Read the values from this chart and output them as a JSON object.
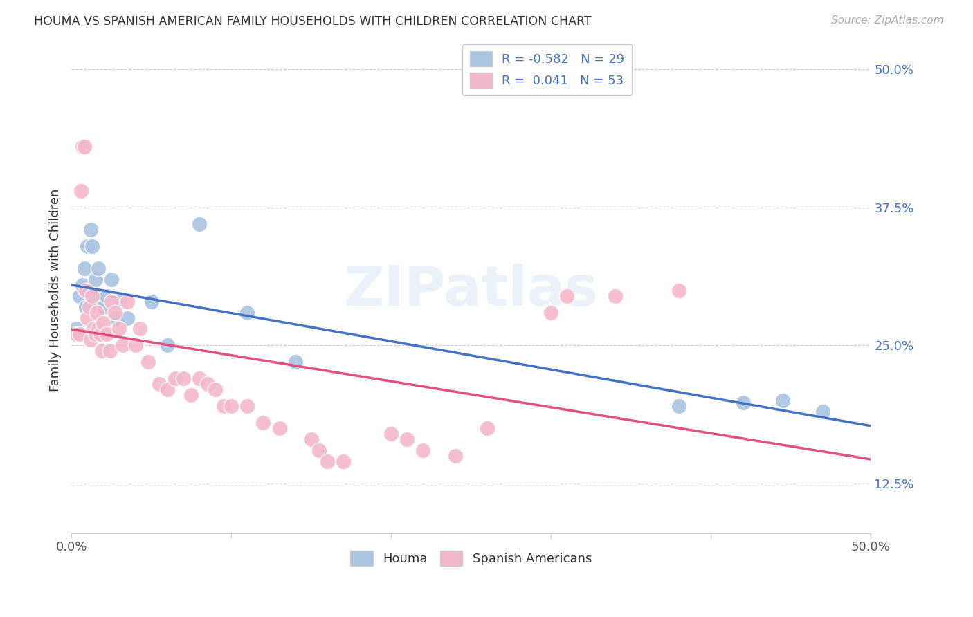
{
  "title": "HOUMA VS SPANISH AMERICAN FAMILY HOUSEHOLDS WITH CHILDREN CORRELATION CHART",
  "source": "Source: ZipAtlas.com",
  "ylabel": "Family Households with Children",
  "xlim": [
    0.0,
    0.5
  ],
  "ylim": [
    0.08,
    0.52
  ],
  "yticks": [
    0.125,
    0.25,
    0.375,
    0.5
  ],
  "ytick_labels": [
    "12.5%",
    "25.0%",
    "37.5%",
    "50.0%"
  ],
  "houma_R": "-0.582",
  "houma_N": "29",
  "spanish_R": "0.041",
  "spanish_N": "53",
  "houma_color": "#aac4e2",
  "houma_line_color": "#4472c4",
  "spanish_color": "#f4b8cb",
  "spanish_line_color": "#e05080",
  "background_color": "#ffffff",
  "grid_color": "#cccccc",
  "houma_x": [
    0.003,
    0.005,
    0.007,
    0.008,
    0.009,
    0.01,
    0.01,
    0.012,
    0.013,
    0.015,
    0.015,
    0.017,
    0.018,
    0.02,
    0.02,
    0.022,
    0.025,
    0.028,
    0.03,
    0.035,
    0.05,
    0.06,
    0.08,
    0.11,
    0.14,
    0.38,
    0.42,
    0.445,
    0.47
  ],
  "houma_y": [
    0.265,
    0.295,
    0.305,
    0.32,
    0.285,
    0.34,
    0.3,
    0.355,
    0.34,
    0.31,
    0.295,
    0.32,
    0.29,
    0.285,
    0.26,
    0.295,
    0.31,
    0.275,
    0.29,
    0.275,
    0.29,
    0.25,
    0.36,
    0.28,
    0.235,
    0.195,
    0.198,
    0.2,
    0.19
  ],
  "spanish_x": [
    0.003,
    0.005,
    0.006,
    0.007,
    0.008,
    0.009,
    0.01,
    0.011,
    0.012,
    0.013,
    0.014,
    0.015,
    0.016,
    0.017,
    0.018,
    0.019,
    0.02,
    0.022,
    0.024,
    0.025,
    0.027,
    0.03,
    0.032,
    0.035,
    0.04,
    0.043,
    0.048,
    0.055,
    0.06,
    0.065,
    0.07,
    0.075,
    0.08,
    0.085,
    0.09,
    0.095,
    0.1,
    0.11,
    0.12,
    0.13,
    0.15,
    0.155,
    0.16,
    0.17,
    0.2,
    0.21,
    0.22,
    0.24,
    0.26,
    0.3,
    0.31,
    0.34,
    0.38
  ],
  "spanish_y": [
    0.26,
    0.26,
    0.39,
    0.43,
    0.43,
    0.3,
    0.275,
    0.285,
    0.255,
    0.295,
    0.265,
    0.26,
    0.28,
    0.265,
    0.26,
    0.245,
    0.27,
    0.26,
    0.245,
    0.29,
    0.28,
    0.265,
    0.25,
    0.29,
    0.25,
    0.265,
    0.235,
    0.215,
    0.21,
    0.22,
    0.22,
    0.205,
    0.22,
    0.215,
    0.21,
    0.195,
    0.195,
    0.195,
    0.18,
    0.175,
    0.165,
    0.155,
    0.145,
    0.145,
    0.17,
    0.165,
    0.155,
    0.15,
    0.175,
    0.28,
    0.295,
    0.295,
    0.3
  ]
}
